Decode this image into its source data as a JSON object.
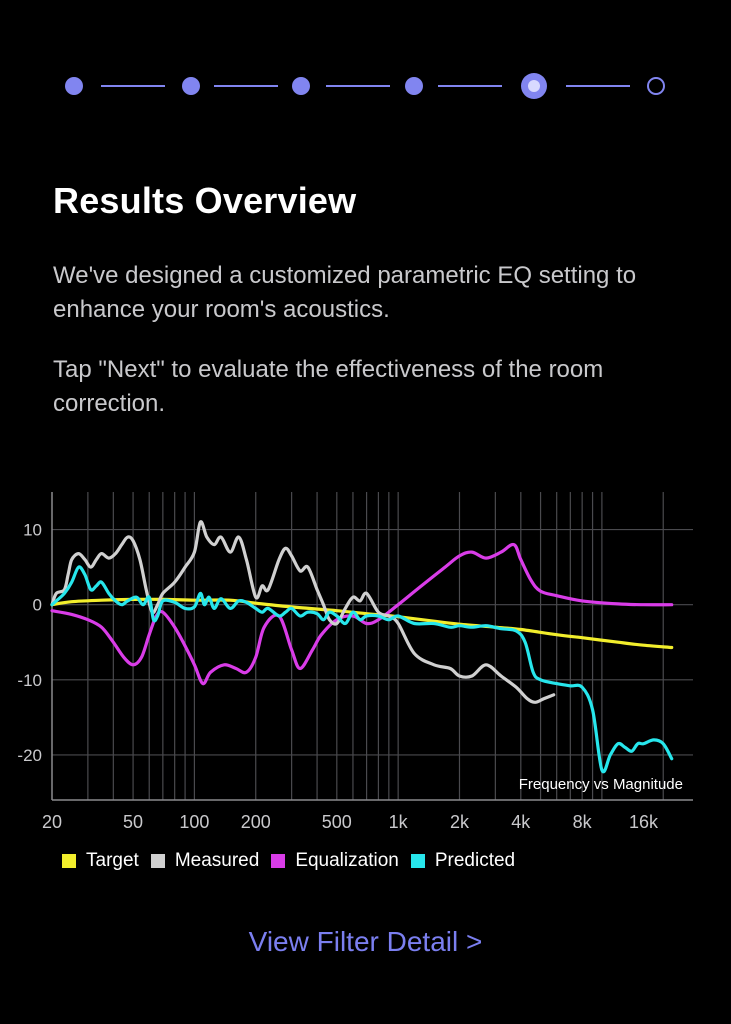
{
  "stepper": {
    "total_steps": 6,
    "current_step": 5,
    "accent_color": "#8185f0"
  },
  "header": {
    "title": "Results Overview"
  },
  "body_text": {
    "paragraph1": "We've designed a customized parametric EQ setting to enhance your room's acoustics.",
    "paragraph2": "Tap \"Next\" to evaluate the effectiveness of the room correction."
  },
  "chart_data": {
    "type": "line",
    "title": "Frequency vs Magnitude",
    "xscale": "log",
    "xlim": [
      20,
      28000
    ],
    "ylim": [
      -26,
      15
    ],
    "x_ticks": [
      {
        "value": 20,
        "label": "20"
      },
      {
        "value": 50,
        "label": "50"
      },
      {
        "value": 100,
        "label": "100"
      },
      {
        "value": 200,
        "label": "200"
      },
      {
        "value": 500,
        "label": "500"
      },
      {
        "value": 1000,
        "label": "1k"
      },
      {
        "value": 2000,
        "label": "2k"
      },
      {
        "value": 4000,
        "label": "4k"
      },
      {
        "value": 8000,
        "label": "8k"
      },
      {
        "value": 16000,
        "label": "16k"
      }
    ],
    "y_ticks": [
      {
        "value": 10,
        "label": "10"
      },
      {
        "value": 0,
        "label": "0"
      },
      {
        "value": -10,
        "label": "-10"
      },
      {
        "value": -20,
        "label": "-20"
      }
    ],
    "grid": true,
    "series": [
      {
        "name": "Target",
        "color": "#f2ee2c",
        "points": [
          [
            20,
            0
          ],
          [
            25,
            0.4
          ],
          [
            35,
            0.6
          ],
          [
            50,
            0.7
          ],
          [
            70,
            0.7
          ],
          [
            100,
            0.6
          ],
          [
            150,
            0.6
          ],
          [
            200,
            0.2
          ],
          [
            300,
            -0.3
          ],
          [
            500,
            -0.8
          ],
          [
            700,
            -1.2
          ],
          [
            1000,
            -1.6
          ],
          [
            1500,
            -2.2
          ],
          [
            2000,
            -2.6
          ],
          [
            3000,
            -3.0
          ],
          [
            4000,
            -3.3
          ],
          [
            6000,
            -4.0
          ],
          [
            8000,
            -4.4
          ],
          [
            12000,
            -5.0
          ],
          [
            16000,
            -5.4
          ],
          [
            22000,
            -5.7
          ]
        ]
      },
      {
        "name": "Measured",
        "color": "#d0d0d0",
        "points": [
          [
            20,
            0
          ],
          [
            21,
            1.5
          ],
          [
            23,
            2.0
          ],
          [
            24,
            4
          ],
          [
            25,
            6
          ],
          [
            27,
            6.8
          ],
          [
            29,
            6
          ],
          [
            31,
            5
          ],
          [
            33,
            6
          ],
          [
            35,
            6.8
          ],
          [
            38,
            6.2
          ],
          [
            41,
            6.8
          ],
          [
            44,
            8
          ],
          [
            47,
            9
          ],
          [
            50,
            8.5
          ],
          [
            54,
            6
          ],
          [
            58,
            2
          ],
          [
            62,
            -1
          ],
          [
            66,
            0
          ],
          [
            70,
            1.5
          ],
          [
            80,
            3
          ],
          [
            90,
            5
          ],
          [
            100,
            7
          ],
          [
            107,
            11
          ],
          [
            115,
            9
          ],
          [
            125,
            8
          ],
          [
            135,
            9
          ],
          [
            150,
            7
          ],
          [
            165,
            9
          ],
          [
            180,
            6
          ],
          [
            200,
            1
          ],
          [
            215,
            2.5
          ],
          [
            230,
            2
          ],
          [
            260,
            6
          ],
          [
            280,
            7.5
          ],
          [
            300,
            6.5
          ],
          [
            330,
            4.5
          ],
          [
            360,
            5
          ],
          [
            400,
            2
          ],
          [
            430,
            0
          ],
          [
            460,
            -2
          ],
          [
            500,
            -2.5
          ],
          [
            550,
            -0.5
          ],
          [
            600,
            1
          ],
          [
            650,
            0.5
          ],
          [
            700,
            1.5
          ],
          [
            800,
            -1
          ],
          [
            900,
            -1.5
          ],
          [
            1000,
            -2.5
          ],
          [
            1200,
            -6.5
          ],
          [
            1500,
            -8
          ],
          [
            1800,
            -8.5
          ],
          [
            2000,
            -9.5
          ],
          [
            2300,
            -9.5
          ],
          [
            2700,
            -8
          ],
          [
            3200,
            -9.5
          ],
          [
            3800,
            -11
          ],
          [
            4300,
            -12.5
          ],
          [
            4700,
            -13
          ],
          [
            5200,
            -12.5
          ],
          [
            5800,
            -12
          ]
        ]
      },
      {
        "name": "Equalization",
        "color": "#d93ce8",
        "points": [
          [
            20,
            -0.8
          ],
          [
            25,
            -1.3
          ],
          [
            30,
            -2
          ],
          [
            35,
            -3
          ],
          [
            40,
            -5
          ],
          [
            45,
            -7
          ],
          [
            50,
            -8
          ],
          [
            55,
            -7
          ],
          [
            60,
            -4
          ],
          [
            65,
            -1.5
          ],
          [
            70,
            -1
          ],
          [
            80,
            -3
          ],
          [
            90,
            -5.5
          ],
          [
            100,
            -8
          ],
          [
            110,
            -10.5
          ],
          [
            120,
            -9
          ],
          [
            140,
            -8
          ],
          [
            160,
            -8.5
          ],
          [
            180,
            -9
          ],
          [
            200,
            -7
          ],
          [
            220,
            -3
          ],
          [
            260,
            -1.5
          ],
          [
            300,
            -6
          ],
          [
            330,
            -8.5
          ],
          [
            380,
            -6
          ],
          [
            420,
            -4
          ],
          [
            500,
            -2
          ],
          [
            600,
            -1.5
          ],
          [
            700,
            -2.5
          ],
          [
            800,
            -2
          ],
          [
            1000,
            0
          ],
          [
            1300,
            2.5
          ],
          [
            1700,
            5
          ],
          [
            2000,
            6.5
          ],
          [
            2300,
            7
          ],
          [
            2700,
            6.2
          ],
          [
            3200,
            7
          ],
          [
            3700,
            8
          ],
          [
            4000,
            6
          ],
          [
            4500,
            3.2
          ],
          [
            5000,
            1.8
          ],
          [
            6000,
            1.2
          ],
          [
            8000,
            0.5
          ],
          [
            12000,
            0.1
          ],
          [
            16000,
            0
          ],
          [
            22000,
            0
          ]
        ]
      },
      {
        "name": "Predicted",
        "color": "#27e6ec",
        "points": [
          [
            20,
            0
          ],
          [
            21,
            0.5
          ],
          [
            23,
            1.5
          ],
          [
            25,
            3
          ],
          [
            27,
            5
          ],
          [
            29,
            4
          ],
          [
            31,
            2
          ],
          [
            33,
            2.5
          ],
          [
            35,
            3
          ],
          [
            38,
            1.5
          ],
          [
            41,
            0.5
          ],
          [
            44,
            0
          ],
          [
            47,
            0.5
          ],
          [
            52,
            1
          ],
          [
            56,
            0
          ],
          [
            60,
            1
          ],
          [
            63,
            -2
          ],
          [
            66,
            -1.5
          ],
          [
            70,
            0.5
          ],
          [
            80,
            0.3
          ],
          [
            90,
            -0.5
          ],
          [
            100,
            -0.3
          ],
          [
            107,
            1.5
          ],
          [
            112,
            0
          ],
          [
            118,
            1
          ],
          [
            125,
            -0.5
          ],
          [
            135,
            0.8
          ],
          [
            150,
            -0.5
          ],
          [
            165,
            0.5
          ],
          [
            180,
            0.3
          ],
          [
            200,
            -0.5
          ],
          [
            215,
            -1
          ],
          [
            230,
            -0.5
          ],
          [
            260,
            -1.5
          ],
          [
            280,
            -1
          ],
          [
            300,
            -0.5
          ],
          [
            330,
            -1.5
          ],
          [
            360,
            -1
          ],
          [
            400,
            -1.2
          ],
          [
            430,
            -2
          ],
          [
            460,
            -1
          ],
          [
            500,
            -1.5
          ],
          [
            550,
            -2.5
          ],
          [
            600,
            -1
          ],
          [
            650,
            -2
          ],
          [
            700,
            -1.5
          ],
          [
            800,
            -1.5
          ],
          [
            900,
            -2
          ],
          [
            1000,
            -1.5
          ],
          [
            1200,
            -2.5
          ],
          [
            1500,
            -2.5
          ],
          [
            1800,
            -3
          ],
          [
            2000,
            -2.8
          ],
          [
            2300,
            -3
          ],
          [
            2700,
            -2.8
          ],
          [
            3200,
            -3.2
          ],
          [
            3800,
            -3.5
          ],
          [
            4200,
            -5
          ],
          [
            4600,
            -9
          ],
          [
            5000,
            -10
          ],
          [
            6000,
            -10.5
          ],
          [
            7000,
            -10.8
          ],
          [
            8000,
            -11
          ],
          [
            9000,
            -14
          ],
          [
            10000,
            -22
          ],
          [
            11000,
            -20
          ],
          [
            12000,
            -18.5
          ],
          [
            13000,
            -19
          ],
          [
            14000,
            -19.5
          ],
          [
            15000,
            -18.5
          ],
          [
            16000,
            -18.5
          ],
          [
            18000,
            -18
          ],
          [
            20000,
            -18.5
          ],
          [
            22000,
            -20.5
          ]
        ]
      }
    ]
  },
  "legend": {
    "items": [
      {
        "label": "Target",
        "color": "#f2ee2c"
      },
      {
        "label": "Measured",
        "color": "#d0d0d0"
      },
      {
        "label": "Equalization",
        "color": "#d93ce8"
      },
      {
        "label": "Predicted",
        "color": "#27e6ec"
      }
    ]
  },
  "footer": {
    "link_label": "View Filter Detail >"
  }
}
